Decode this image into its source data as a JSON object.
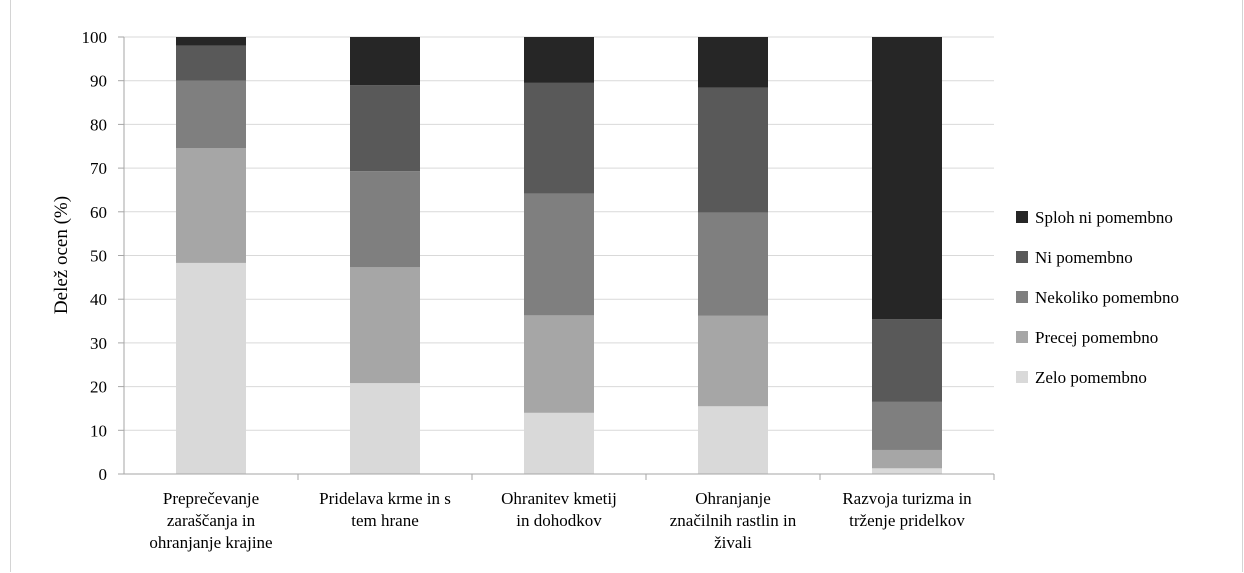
{
  "chart_data": {
    "type": "bar",
    "stacked": true,
    "ylabel": "Delež ocen (%)",
    "xlabel": "",
    "ylim": [
      0,
      100
    ],
    "yticks": [
      0,
      10,
      20,
      30,
      40,
      50,
      60,
      70,
      80,
      90,
      100
    ],
    "grid": true,
    "legend_position": "right",
    "categories": [
      [
        "Preprečevanje",
        "zaraščanja in",
        "ohranjanje krajine"
      ],
      [
        "Pridelava krme in s",
        "tem hrane"
      ],
      [
        "Ohranitev kmetij",
        "in dohodkov"
      ],
      [
        "Ohranjanje",
        "značilnih rastlin in",
        "živali"
      ],
      [
        "Razvoja turizma in",
        "trženje pridelkov"
      ]
    ],
    "series": [
      {
        "name": "Zelo pomembno",
        "color": "#d9d9d9",
        "values": [
          48.3,
          20.8,
          14.0,
          15.5,
          1.3
        ]
      },
      {
        "name": "Precej pomembno",
        "color": "#a6a6a6",
        "values": [
          26.3,
          26.5,
          22.3,
          20.7,
          4.2
        ]
      },
      {
        "name": "Nekoliko pomembno",
        "color": "#7f7f7f",
        "values": [
          15.4,
          22.0,
          27.9,
          23.6,
          11.0
        ]
      },
      {
        "name": "Ni pomembno",
        "color": "#595959",
        "values": [
          8.0,
          19.7,
          25.3,
          28.6,
          18.9
        ]
      },
      {
        "name": "Sploh ni pomembno",
        "color": "#262626",
        "values": [
          2.0,
          11.0,
          10.5,
          11.6,
          64.6
        ]
      }
    ]
  }
}
